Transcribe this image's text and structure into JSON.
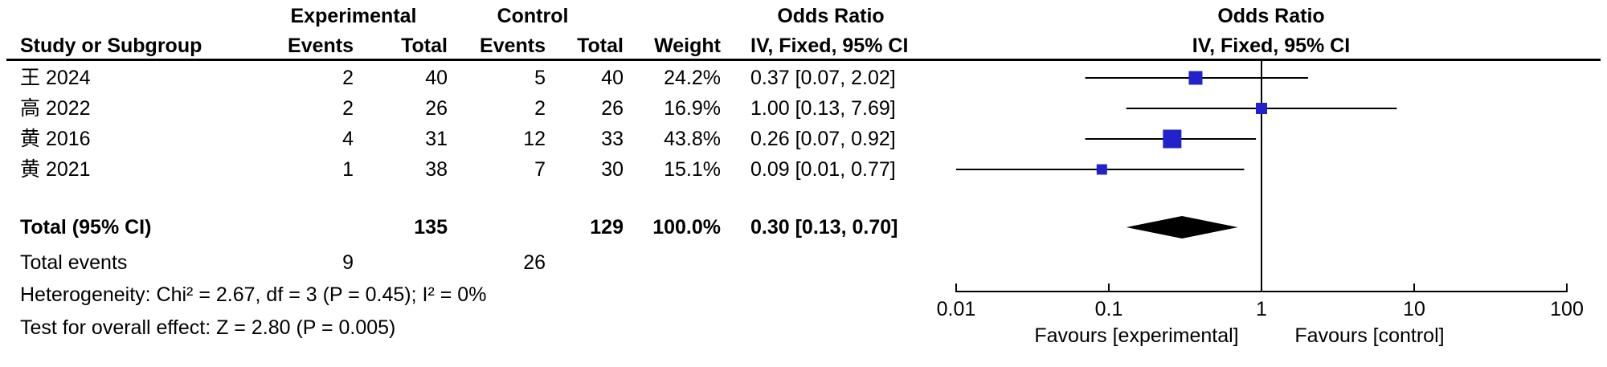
{
  "table": {
    "headers": {
      "group_experimental": "Experimental",
      "group_control": "Control",
      "odds_ratio_text": "Odds Ratio",
      "odds_ratio_plot": "Odds Ratio",
      "study": "Study or Subgroup",
      "exp_events": "Events",
      "exp_total": "Total",
      "ctrl_events": "Events",
      "ctrl_total": "Total",
      "weight": "Weight",
      "ci_method_text": "IV, Fixed, 95% CI",
      "ci_method_plot": "IV, Fixed, 95% CI"
    },
    "rows": [
      {
        "study": "王 2024",
        "exp_events": "2",
        "exp_total": "40",
        "ctrl_events": "5",
        "ctrl_total": "40",
        "weight": "24.2%",
        "or_ci": "0.37 [0.07, 2.02]"
      },
      {
        "study": "高 2022",
        "exp_events": "2",
        "exp_total": "26",
        "ctrl_events": "2",
        "ctrl_total": "26",
        "weight": "16.9%",
        "or_ci": "1.00 [0.13, 7.69]"
      },
      {
        "study": "黄 2016",
        "exp_events": "4",
        "exp_total": "31",
        "ctrl_events": "12",
        "ctrl_total": "33",
        "weight": "43.8%",
        "or_ci": "0.26 [0.07, 0.92]"
      },
      {
        "study": "黄 2021",
        "exp_events": "1",
        "exp_total": "38",
        "ctrl_events": "7",
        "ctrl_total": "30",
        "weight": "15.1%",
        "or_ci": "0.09 [0.01, 0.77]"
      }
    ],
    "total_row": {
      "label": "Total (95% CI)",
      "exp_total": "135",
      "ctrl_total": "129",
      "weight": "100.0%",
      "or_ci": "0.30 [0.13, 0.70]"
    },
    "total_events": {
      "label": "Total events",
      "exp": "9",
      "ctrl": "26"
    },
    "heterogeneity": "Heterogeneity: Chi² = 2.67, df = 3 (P = 0.45); I² = 0%",
    "overall_effect": "Test for overall effect: Z = 2.80 (P = 0.005)"
  },
  "plot": {
    "favours_left": "Favours [experimental]",
    "favours_right": "Favours [control]",
    "marker_color": "#2222CC",
    "line_color": "#000000"
  },
  "chart_data": {
    "type": "forest",
    "effect_measure": "Odds Ratio, IV, Fixed, 95% CI",
    "scale": "log10",
    "xlim": [
      0.01,
      100
    ],
    "ticks": [
      0.01,
      0.1,
      1,
      10,
      100
    ],
    "tick_labels": [
      "0.01",
      "0.1",
      "1",
      "10",
      "100"
    ],
    "null_line": 1,
    "studies": [
      {
        "name": "王 2024",
        "or": 0.37,
        "ci_low": 0.07,
        "ci_high": 2.02,
        "weight": 24.2
      },
      {
        "name": "高 2022",
        "or": 1.0,
        "ci_low": 0.13,
        "ci_high": 7.69,
        "weight": 16.9
      },
      {
        "name": "黄 2016",
        "or": 0.26,
        "ci_low": 0.07,
        "ci_high": 0.92,
        "weight": 43.8
      },
      {
        "name": "黄 2021",
        "or": 0.09,
        "ci_low": 0.01,
        "ci_high": 0.77,
        "weight": 15.1
      }
    ],
    "total": {
      "or": 0.3,
      "ci_low": 0.13,
      "ci_high": 0.7,
      "weight": 100.0
    }
  }
}
